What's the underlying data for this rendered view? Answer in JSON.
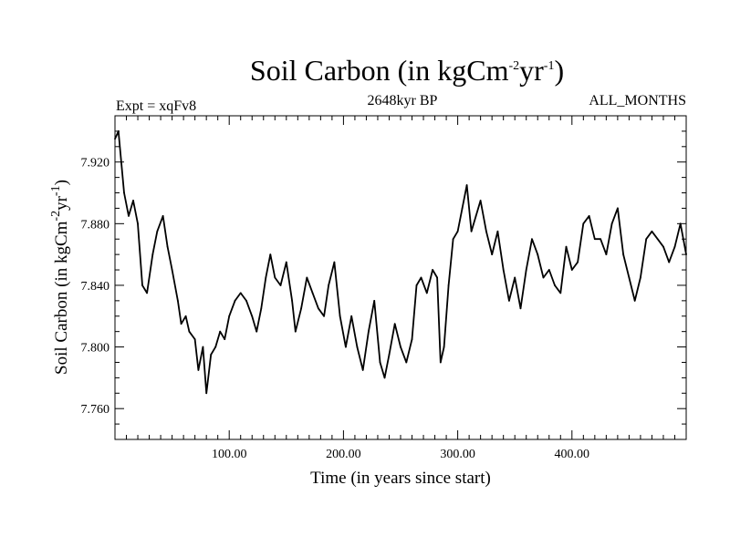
{
  "chart_data": {
    "type": "line",
    "title": "Soil Carbon (in kgCm",
    "title_sup1": "-2",
    "title_mid": "yr",
    "title_sup2": "-1",
    "title_end": ")",
    "subtitle_left": "Expt = xqFv8",
    "subtitle_center": "2648kyr BP",
    "subtitle_right": "ALL_MONTHS",
    "xlabel": "Time (in years since start)",
    "ylabel": "Soil Carbon (in kgCm",
    "ylabel_sup1": "-2",
    "ylabel_mid": "yr",
    "ylabel_sup2": "-1",
    "ylabel_end": ")",
    "xlim": [
      0,
      500
    ],
    "ylim": [
      7.74,
      7.95
    ],
    "x_ticks": [
      100,
      200,
      300,
      400
    ],
    "x_tick_labels": [
      "100.00",
      "200.00",
      "300.00",
      "400.00"
    ],
    "y_ticks": [
      7.76,
      7.8,
      7.84,
      7.88,
      7.92
    ],
    "y_tick_labels": [
      "7.760",
      "7.800",
      "7.840",
      "7.880",
      "7.920"
    ],
    "grid": false,
    "series": [
      {
        "name": "Soil Carbon",
        "color": "#000000",
        "x": [
          0,
          3,
          8,
          12,
          16,
          20,
          24,
          28,
          33,
          37,
          42,
          46,
          50,
          55,
          58,
          62,
          65,
          70,
          73,
          77,
          80,
          84,
          88,
          92,
          96,
          100,
          105,
          110,
          115,
          120,
          124,
          128,
          132,
          136,
          140,
          145,
          150,
          155,
          158,
          163,
          168,
          173,
          178,
          183,
          187,
          192,
          197,
          202,
          207,
          212,
          217,
          222,
          227,
          232,
          236,
          240,
          245,
          250,
          255,
          260,
          264,
          268,
          273,
          278,
          282,
          285,
          288,
          292,
          296,
          300,
          304,
          308,
          312,
          316,
          320,
          325,
          330,
          335,
          340,
          345,
          350,
          355,
          360,
          365,
          370,
          375,
          380,
          385,
          390,
          395,
          400,
          405,
          410,
          415,
          420,
          425,
          430,
          435,
          440,
          445,
          450,
          455,
          460,
          465,
          470,
          475,
          480,
          485,
          490,
          495,
          500
        ],
        "values": [
          7.935,
          7.94,
          7.9,
          7.885,
          7.895,
          7.88,
          7.84,
          7.835,
          7.86,
          7.875,
          7.885,
          7.865,
          7.85,
          7.83,
          7.815,
          7.82,
          7.81,
          7.805,
          7.785,
          7.8,
          7.77,
          7.795,
          7.8,
          7.81,
          7.805,
          7.82,
          7.83,
          7.835,
          7.83,
          7.82,
          7.81,
          7.825,
          7.845,
          7.86,
          7.845,
          7.84,
          7.855,
          7.83,
          7.81,
          7.825,
          7.845,
          7.835,
          7.825,
          7.82,
          7.84,
          7.855,
          7.82,
          7.8,
          7.82,
          7.8,
          7.785,
          7.81,
          7.83,
          7.79,
          7.78,
          7.795,
          7.815,
          7.8,
          7.79,
          7.805,
          7.84,
          7.845,
          7.835,
          7.85,
          7.845,
          7.79,
          7.8,
          7.84,
          7.87,
          7.875,
          7.89,
          7.905,
          7.875,
          7.885,
          7.895,
          7.875,
          7.86,
          7.875,
          7.85,
          7.83,
          7.845,
          7.825,
          7.85,
          7.87,
          7.86,
          7.845,
          7.85,
          7.84,
          7.835,
          7.865,
          7.85,
          7.855,
          7.88,
          7.885,
          7.87,
          7.87,
          7.86,
          7.88,
          7.89,
          7.86,
          7.845,
          7.83,
          7.845,
          7.87,
          7.875,
          7.87,
          7.865,
          7.855,
          7.865,
          7.88,
          7.86
        ]
      }
    ]
  }
}
